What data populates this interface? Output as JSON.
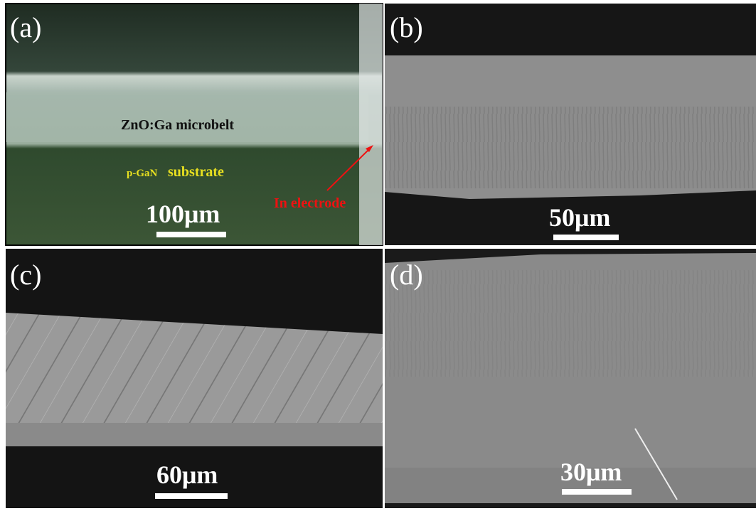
{
  "panels": [
    {
      "label": "(a)",
      "scale_bar": "100μm",
      "annotations": {
        "belt": "ZnO:Ga microbelt",
        "substrate_prefix": "p-GaN",
        "substrate": "substrate",
        "electrode": "In electrode"
      }
    },
    {
      "label": "(b)",
      "scale_bar": "50μm"
    },
    {
      "label": "(c)",
      "scale_bar": "60μm"
    },
    {
      "label": "(d)",
      "scale_bar": "30μm"
    }
  ]
}
